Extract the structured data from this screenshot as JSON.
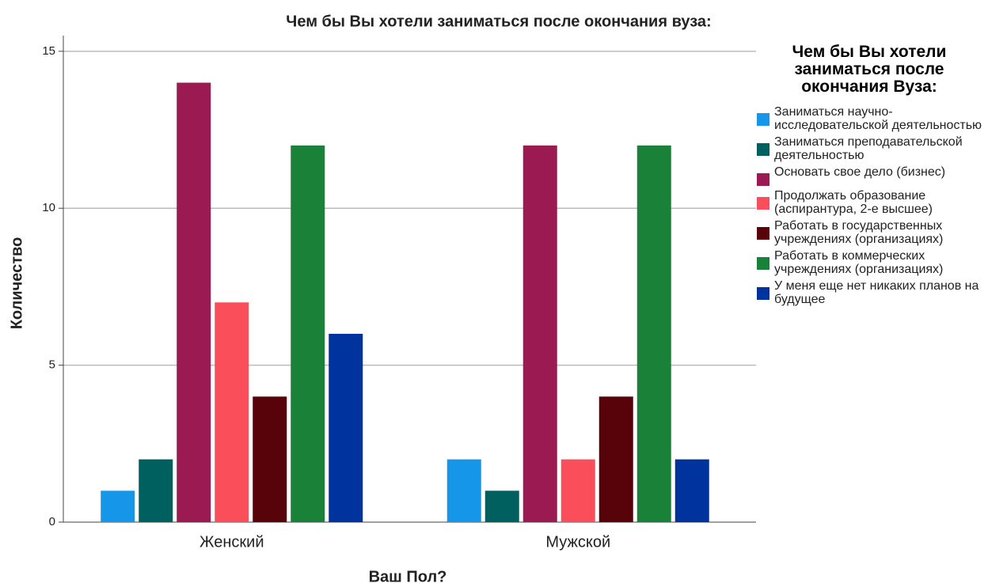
{
  "chart_data": {
    "type": "bar",
    "title": "Чем бы Вы хотели заниматься после окончания вуза:",
    "x_label": "Ваш Пол?",
    "y_label": "Количество",
    "legend_title": "Чем бы Вы хотели заниматься после окончания Вуза:",
    "categories": [
      "Женский",
      "Мужской"
    ],
    "series": [
      {
        "name": "Заниматься научно-исследовательской деятельностью",
        "color": "#1696e8",
        "values": [
          1,
          2
        ]
      },
      {
        "name": "Заниматься преподавательской деятельностью",
        "color": "#006060",
        "values": [
          2,
          1
        ]
      },
      {
        "name": "Основать свое дело (бизнес)",
        "color": "#9c1a52",
        "values": [
          14,
          12
        ]
      },
      {
        "name": "Продолжать образование (аспирантура, 2-е высшее)",
        "color": "#fa4f5a",
        "values": [
          7,
          2
        ]
      },
      {
        "name": "Работать в государственных учреждениях (организациях)",
        "color": "#580309",
        "values": [
          4,
          4
        ]
      },
      {
        "name": "Работать в коммерческих учреждениях (организациях)",
        "color": "#1a8139",
        "values": [
          12,
          12
        ]
      },
      {
        "name": "У меня еще нет никаких планов на будущее",
        "color": "#00339e",
        "values": [
          6,
          2
        ]
      }
    ],
    "ylim": [
      0,
      15.5
    ],
    "yticks": [
      0,
      5,
      10,
      15
    ],
    "grid": true,
    "legend": "right"
  }
}
